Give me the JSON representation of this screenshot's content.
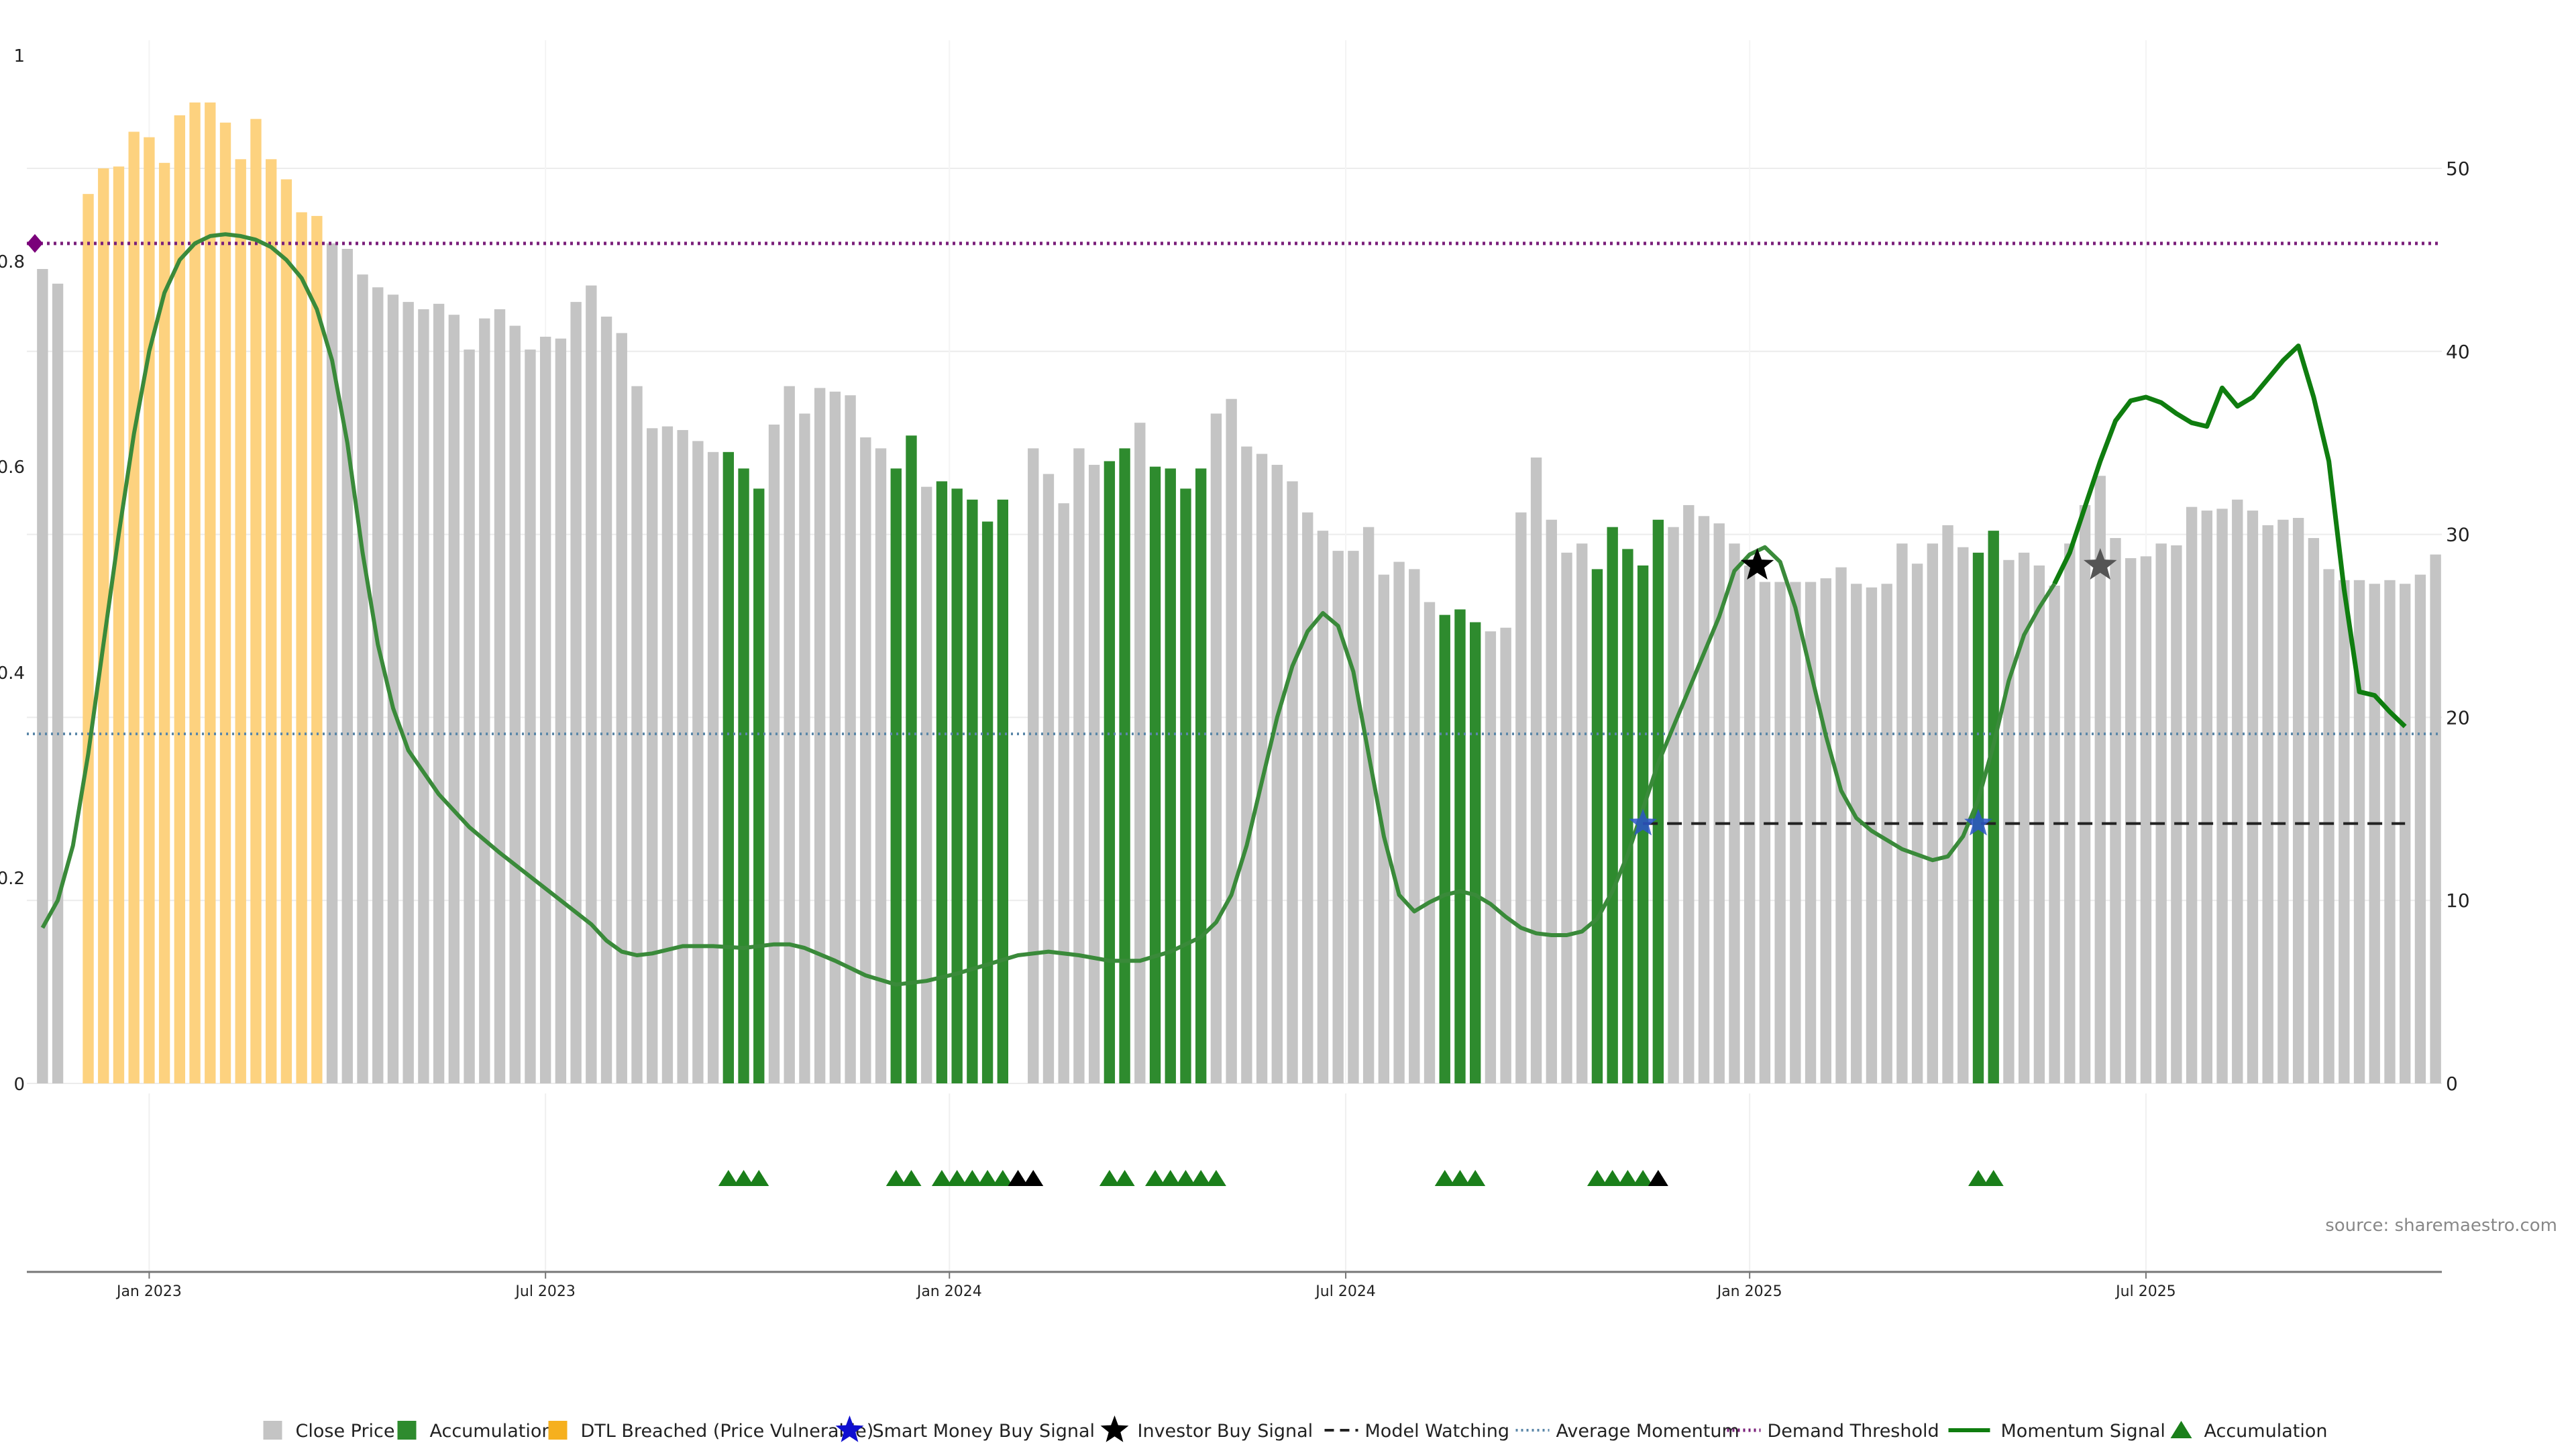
{
  "chart_data": {
    "type": "bar",
    "title": "",
    "left_axis": {
      "range": [
        0,
        1.0
      ],
      "ticks": [
        "0",
        "0.2",
        "0.4",
        "0.6",
        "0.8",
        "1"
      ]
    },
    "right_axis": {
      "range": [
        0,
        57
      ],
      "ticks": [
        "0",
        "10",
        "20",
        "30",
        "40",
        "50"
      ]
    },
    "x_ticks": [
      {
        "label": "Jan 2023",
        "index": 7
      },
      {
        "label": "Jul 2023",
        "index": 33
      },
      {
        "label": "Jan 2024",
        "index": 59.5
      },
      {
        "label": "Jul 2024",
        "index": 85.5
      },
      {
        "label": "Jan 2025",
        "index": 112
      },
      {
        "label": "Jul 2025",
        "index": 138
      }
    ],
    "price_values": [
      44.5,
      43.7,
      0,
      48.6,
      50.0,
      50.1,
      52.0,
      51.7,
      50.3,
      52.9,
      53.6,
      53.6,
      52.5,
      50.5,
      52.7,
      50.5,
      49.4,
      47.6,
      47.4,
      45.9,
      45.6,
      44.2,
      43.5,
      43.1,
      42.7,
      42.3,
      42.6,
      42.0,
      40.1,
      41.8,
      42.3,
      41.4,
      40.1,
      40.8,
      40.7,
      42.7,
      43.6,
      41.9,
      41.0,
      38.1,
      35.8,
      35.9,
      35.7,
      35.1,
      34.5,
      34.5,
      33.6,
      32.5,
      36.0,
      38.1,
      36.6,
      38.0,
      37.8,
      37.6,
      35.3,
      34.7,
      33.6,
      35.4,
      32.6,
      32.9,
      32.5,
      31.9,
      30.7,
      31.9,
      0,
      34.7,
      33.3,
      31.7,
      34.7,
      33.8,
      34.0,
      34.7,
      36.1,
      33.7,
      33.6,
      32.5,
      33.6,
      36.6,
      37.4,
      34.8,
      34.4,
      33.8,
      32.9,
      31.2,
      30.2,
      29.1,
      29.1,
      30.4,
      27.8,
      28.5,
      28.1,
      26.3,
      25.6,
      25.9,
      25.2,
      24.7,
      24.9,
      31.2,
      34.2,
      30.8,
      29.0,
      29.5,
      28.1,
      30.4,
      29.2,
      28.3,
      30.8,
      30.4,
      31.6,
      31.0,
      30.6,
      29.5,
      28.3,
      27.4,
      27.4,
      27.4,
      27.4,
      27.6,
      28.2,
      27.3,
      27.1,
      27.3,
      29.5,
      28.4,
      29.5,
      30.5,
      29.3,
      29.0,
      30.2,
      28.6,
      29.0,
      28.3,
      27.2,
      29.5,
      31.6,
      33.2,
      29.8,
      28.7,
      28.8,
      29.5,
      29.4,
      31.5,
      31.3,
      31.4,
      31.9,
      31.3,
      30.5,
      30.8,
      30.9,
      29.8,
      28.1,
      27.5,
      27.5,
      27.3,
      27.5,
      27.3,
      27.8,
      28.9
    ],
    "accumulation_bar_indices": [
      45,
      46,
      47,
      56,
      57,
      59,
      60,
      61,
      62,
      63,
      64,
      70,
      71,
      73,
      74,
      75,
      76,
      92,
      93,
      94,
      102,
      103,
      104,
      105,
      106,
      127,
      128
    ],
    "dtl_breached_bar_indices": [
      2,
      3,
      4,
      5,
      6,
      7,
      8,
      9,
      10,
      11,
      12,
      13,
      14,
      15,
      16,
      17,
      18
    ],
    "momentum_signal": [
      [
        0,
        8.5
      ],
      [
        1,
        10.0
      ],
      [
        2,
        13.0
      ],
      [
        3,
        18.0
      ],
      [
        4,
        24.0
      ],
      [
        5,
        30.0
      ],
      [
        6,
        35.5
      ],
      [
        7,
        40.0
      ],
      [
        8,
        43.2
      ],
      [
        9,
        45.0
      ],
      [
        10,
        45.9
      ],
      [
        11,
        46.3
      ],
      [
        12,
        46.4
      ],
      [
        13,
        46.3
      ],
      [
        14,
        46.1
      ],
      [
        15,
        45.7
      ],
      [
        16,
        45.0
      ],
      [
        17,
        44.0
      ],
      [
        18,
        42.3
      ],
      [
        19,
        39.5
      ],
      [
        20,
        35.0
      ],
      [
        21,
        29.0
      ],
      [
        22,
        24.0
      ],
      [
        23,
        20.5
      ],
      [
        24,
        18.2
      ],
      [
        26,
        15.8
      ],
      [
        28,
        14.0
      ],
      [
        30,
        12.6
      ],
      [
        32,
        11.3
      ],
      [
        34,
        10.0
      ],
      [
        36,
        8.7
      ],
      [
        37,
        7.8
      ],
      [
        38,
        7.2
      ],
      [
        39,
        7.0
      ],
      [
        40,
        7.1
      ],
      [
        42,
        7.5
      ],
      [
        44,
        7.5
      ],
      [
        46,
        7.4
      ],
      [
        48,
        7.6
      ],
      [
        49,
        7.6
      ],
      [
        50,
        7.4
      ],
      [
        52,
        6.7
      ],
      [
        54,
        5.9
      ],
      [
        56,
        5.4
      ],
      [
        58,
        5.6
      ],
      [
        60,
        6.0
      ],
      [
        62,
        6.5
      ],
      [
        64,
        7.0
      ],
      [
        66,
        7.2
      ],
      [
        68,
        7.0
      ],
      [
        70,
        6.7
      ],
      [
        72,
        6.7
      ],
      [
        74,
        7.2
      ],
      [
        76,
        8.0
      ],
      [
        77,
        8.8
      ],
      [
        78,
        10.3
      ],
      [
        79,
        13.0
      ],
      [
        80,
        16.5
      ],
      [
        81,
        20.0
      ],
      [
        82,
        22.8
      ],
      [
        83,
        24.7
      ],
      [
        84,
        25.7
      ],
      [
        85,
        25.0
      ],
      [
        86,
        22.5
      ],
      [
        87,
        18.0
      ],
      [
        88,
        13.5
      ],
      [
        89,
        10.3
      ],
      [
        90,
        9.4
      ],
      [
        91,
        9.9
      ],
      [
        92,
        10.3
      ],
      [
        93,
        10.5
      ],
      [
        94,
        10.3
      ],
      [
        95,
        9.8
      ],
      [
        96,
        9.1
      ],
      [
        97,
        8.5
      ],
      [
        98,
        8.2
      ],
      [
        99,
        8.1
      ],
      [
        100,
        8.1
      ],
      [
        101,
        8.3
      ],
      [
        102,
        9.0
      ],
      [
        103,
        10.5
      ],
      [
        104,
        12.5
      ],
      [
        105,
        15.0
      ],
      [
        106,
        17.5
      ],
      [
        107,
        19.5
      ],
      [
        108,
        21.5
      ],
      [
        109,
        23.5
      ],
      [
        110,
        25.5
      ],
      [
        111,
        28.0
      ],
      [
        112,
        28.9
      ],
      [
        113,
        29.3
      ],
      [
        114,
        28.5
      ],
      [
        115,
        26.0
      ],
      [
        116,
        22.5
      ],
      [
        117,
        19.0
      ],
      [
        118,
        16.0
      ],
      [
        119,
        14.5
      ],
      [
        120,
        13.8
      ],
      [
        122,
        12.8
      ],
      [
        124,
        12.2
      ],
      [
        125,
        12.4
      ],
      [
        126,
        13.5
      ],
      [
        127,
        15.5
      ],
      [
        128,
        18.5
      ],
      [
        129,
        22.0
      ],
      [
        130,
        24.5
      ],
      [
        131,
        26.0
      ],
      [
        132,
        27.3
      ],
      [
        133,
        29.0
      ],
      [
        134,
        31.5
      ],
      [
        135,
        34.0
      ],
      [
        136,
        36.2
      ],
      [
        137,
        37.3
      ],
      [
        138,
        37.5
      ],
      [
        139,
        37.2
      ],
      [
        140,
        36.6
      ],
      [
        141,
        36.1
      ],
      [
        142,
        35.9
      ],
      [
        143,
        38.0
      ],
      [
        144,
        37.0
      ],
      [
        145,
        37.5
      ],
      [
        146,
        38.5
      ],
      [
        147,
        39.5
      ],
      [
        148,
        40.3
      ],
      [
        149,
        37.5
      ],
      [
        150,
        34.0
      ],
      [
        151,
        27.0
      ],
      [
        152,
        21.4
      ],
      [
        153,
        21.2
      ],
      [
        154,
        20.3
      ],
      [
        155,
        19.5
      ]
    ],
    "average_momentum": 19.1,
    "demand_threshold": 45.9,
    "model_watching": {
      "start_index": 105,
      "end_index": 155,
      "value": 14.2
    },
    "smart_money_buy_signals": [
      {
        "index": 105,
        "value": 14.2
      },
      {
        "index": 127,
        "value": 14.2
      }
    ],
    "investor_buy_signals": [
      {
        "index": 112.5,
        "value": 28.3,
        "color": "#000000"
      },
      {
        "index": 135,
        "value": 28.3,
        "color": "#555555"
      }
    ],
    "accumulation_markers": [
      {
        "index": 45,
        "color": "green"
      },
      {
        "index": 46,
        "color": "green"
      },
      {
        "index": 47,
        "color": "green"
      },
      {
        "index": 56,
        "color": "green"
      },
      {
        "index": 57,
        "color": "green"
      },
      {
        "index": 59,
        "color": "green"
      },
      {
        "index": 60,
        "color": "green"
      },
      {
        "index": 61,
        "color": "green"
      },
      {
        "index": 62,
        "color": "green"
      },
      {
        "index": 63,
        "color": "green"
      },
      {
        "index": 64,
        "color": "black"
      },
      {
        "index": 65,
        "color": "black"
      },
      {
        "index": 70,
        "color": "green"
      },
      {
        "index": 71,
        "color": "green"
      },
      {
        "index": 73,
        "color": "green"
      },
      {
        "index": 74,
        "color": "green"
      },
      {
        "index": 75,
        "color": "green"
      },
      {
        "index": 76,
        "color": "green"
      },
      {
        "index": 77,
        "color": "green"
      },
      {
        "index": 92,
        "color": "green"
      },
      {
        "index": 93,
        "color": "green"
      },
      {
        "index": 94,
        "color": "green"
      },
      {
        "index": 102,
        "color": "green"
      },
      {
        "index": 103,
        "color": "green"
      },
      {
        "index": 104,
        "color": "green"
      },
      {
        "index": 105,
        "color": "green"
      },
      {
        "index": 106,
        "color": "black"
      },
      {
        "index": 127,
        "color": "green"
      },
      {
        "index": 128,
        "color": "green"
      }
    ],
    "demand_marker": {
      "index": 0,
      "value": 45.9
    },
    "source_label": "source: sharemaestro.com",
    "legend": [
      {
        "key": "close",
        "label": "Close Price"
      },
      {
        "key": "accum_bar",
        "label": "Accumulation"
      },
      {
        "key": "dtl",
        "label": "DTL Breached (Price Vulnerable)"
      },
      {
        "key": "smart",
        "label": "Smart Money Buy Signal"
      },
      {
        "key": "investor",
        "label": "Investor Buy Signal"
      },
      {
        "key": "watch",
        "label": "Model Watching"
      },
      {
        "key": "avg",
        "label": "Average Momentum"
      },
      {
        "key": "demand",
        "label": "Demand Threshold"
      },
      {
        "key": "momentum",
        "label": "Momentum Signal"
      },
      {
        "key": "accum_marker",
        "label": "Accumulation"
      }
    ],
    "colors": {
      "close": "#c4c4c4",
      "accumulation": "#2e8b2e",
      "dtl": "#fdd27f",
      "momentum_light": "#3a8a3a",
      "momentum_dark": "#0f7d0f",
      "average_momentum": "#5b87a8",
      "demand_threshold": "#7a1f7a",
      "smart_money": "#2b55c7",
      "investor": "#000000",
      "marker_green": "#1a7f1a",
      "marker_black": "#000000",
      "grid": "#ececec",
      "axis": "#444444"
    }
  }
}
